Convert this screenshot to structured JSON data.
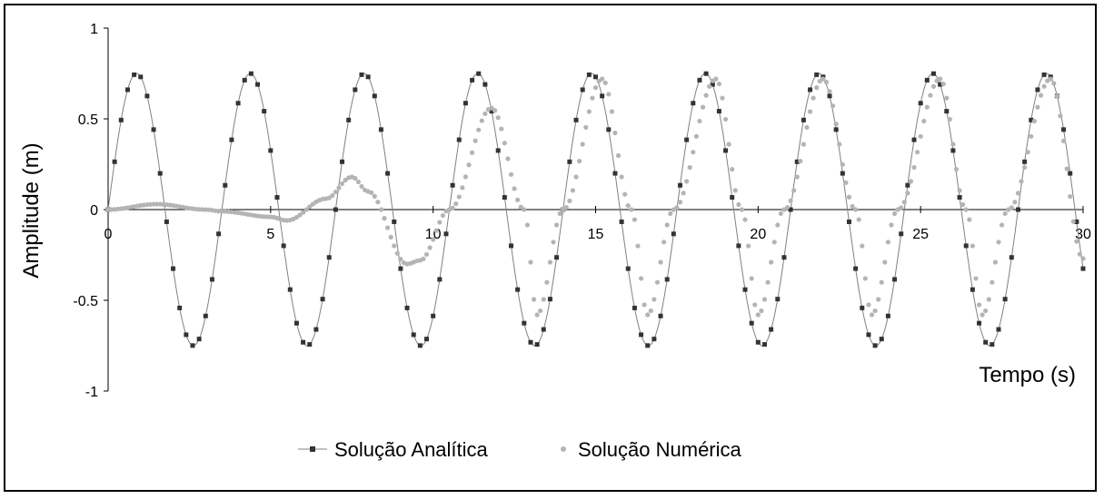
{
  "chart_data": {
    "type": "scatter",
    "title": "",
    "xlabel": "Tempo (s)",
    "ylabel": "Amplitude (m)",
    "xlim": [
      0,
      30
    ],
    "ylim": [
      -1,
      1
    ],
    "x_ticks": [
      0,
      5,
      10,
      15,
      20,
      25,
      30
    ],
    "y_ticks": [
      -1,
      -0.5,
      0,
      0.5,
      1
    ],
    "x_tick_labels": [
      "0",
      "5",
      "10",
      "15",
      "20",
      "25",
      "30"
    ],
    "y_tick_labels": [
      "-1",
      "-0.5",
      "0",
      "0.5",
      "1"
    ],
    "grid": false,
    "legend_position": "bottom",
    "series": [
      {
        "name": "Solução Analítica",
        "style": "line-with-square-markers",
        "color": "#333333",
        "line_color": "#808080",
        "amplitude": 0.75,
        "period_s": 3.5,
        "sample_step_s": 0.2,
        "x_start": 0,
        "x_end": 30
      },
      {
        "name": "Solução Numérica",
        "style": "circle-markers",
        "color": "#b4b4b4",
        "sample_step_s": 0.1,
        "x": [
          0,
          1.5,
          3,
          3.5,
          5,
          5.5,
          6.7,
          7.5,
          8.0,
          9.2,
          9.6,
          10.5,
          11.8,
          12.8,
          13.2,
          14.0,
          15.2,
          16.1,
          16.6,
          17.4,
          18.7,
          19.5,
          20.0,
          20.8,
          22.0,
          23.0,
          23.5,
          24.3,
          25.6,
          26.4,
          26.9,
          27.7,
          29.0,
          30.0
        ],
        "y": [
          0,
          0.03,
          0,
          -0.01,
          -0.04,
          -0.06,
          0.06,
          0.18,
          0.1,
          -0.3,
          -0.28,
          0.0,
          0.56,
          0.0,
          -0.58,
          0.0,
          0.72,
          0.0,
          -0.58,
          0.0,
          0.72,
          0.0,
          -0.58,
          0.0,
          0.72,
          0.0,
          -0.58,
          0.0,
          0.72,
          0.0,
          -0.58,
          0.0,
          0.72,
          -0.27
        ]
      }
    ]
  }
}
